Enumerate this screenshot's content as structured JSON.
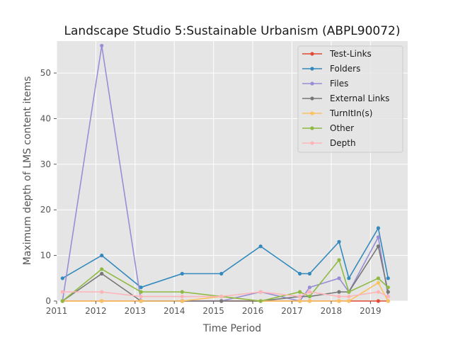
{
  "chart_data": {
    "type": "line",
    "title": "Landscape Studio 5:Sustainable Urbanism (ABPL90072)",
    "xlabel": "Time Period",
    "ylabel": "Maximum depth of LMS content items",
    "xlim": [
      2011.0,
      2019.95
    ],
    "ylim": [
      0,
      57
    ],
    "xticks": [
      2011,
      2012,
      2013,
      2014,
      2015,
      2016,
      2017,
      2018,
      2019
    ],
    "yticks": [
      0,
      10,
      20,
      30,
      40,
      50
    ],
    "grid": true,
    "legend_position": "upper right",
    "x": [
      2011.15,
      2012.15,
      2013.15,
      2014.2,
      2015.2,
      2016.2,
      2017.2,
      2017.45,
      2018.2,
      2018.45,
      2019.2,
      2019.45
    ],
    "series": [
      {
        "name": "Test-Links",
        "color": "#E24A33",
        "values": [
          0,
          0,
          0,
          0,
          0,
          0,
          0,
          0,
          0,
          0,
          0,
          0
        ]
      },
      {
        "name": "Folders",
        "color": "#348ABD",
        "values": [
          5,
          10,
          3,
          6,
          6,
          12,
          6,
          6,
          13,
          5,
          16,
          5
        ]
      },
      {
        "name": "Files",
        "color": "#988ED5",
        "values": [
          0,
          56,
          0,
          0,
          0,
          2,
          0,
          3,
          5,
          2,
          14,
          1
        ]
      },
      {
        "name": "External Links",
        "color": "#777777",
        "values": [
          0,
          6,
          0,
          0,
          0,
          0,
          1,
          1,
          2,
          2,
          12,
          2
        ]
      },
      {
        "name": "TurnItIn(s)",
        "color": "#FBC15E",
        "values": [
          0,
          0,
          0,
          0,
          1,
          0,
          0,
          0,
          0,
          0,
          4,
          0
        ]
      },
      {
        "name": "Other",
        "color": "#8EBA42",
        "values": [
          0,
          7,
          2,
          2,
          1,
          0,
          2,
          1,
          9,
          2,
          5,
          3
        ]
      },
      {
        "name": "Depth",
        "color": "#FFB5B8",
        "values": [
          2,
          2,
          1,
          1,
          1,
          2,
          1,
          2,
          1,
          1,
          2,
          1
        ]
      }
    ]
  }
}
